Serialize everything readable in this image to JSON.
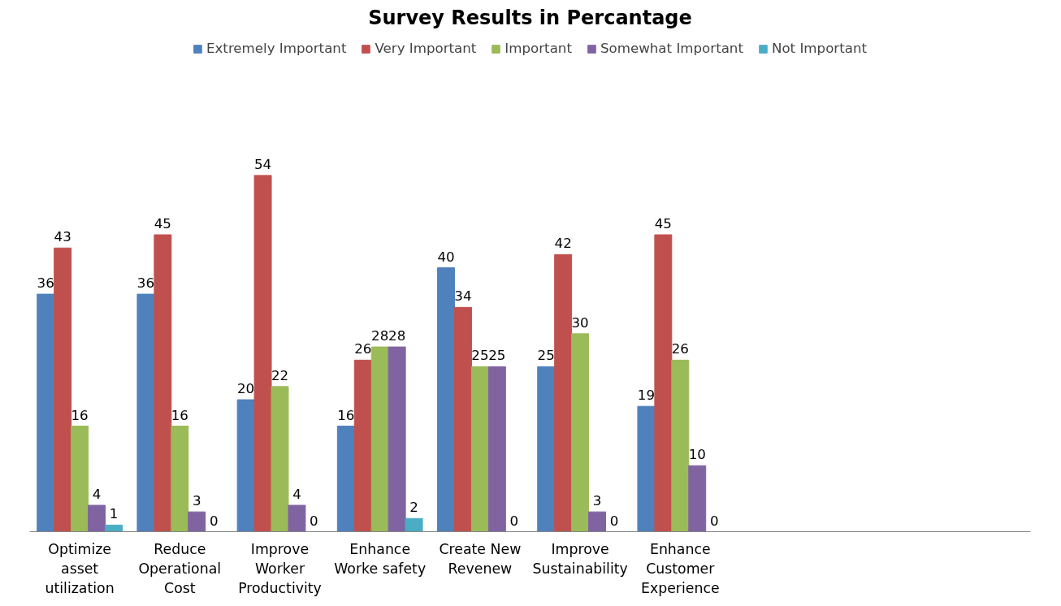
{
  "chart_data": {
    "type": "bar",
    "title": "Survey Results in Percantage",
    "categories": [
      "Optimize asset utilization",
      "Reduce Operational Cost",
      "Improve Worker Productivity",
      "Enhance Worke safety",
      "Create New Revenew",
      "Improve Sustainability",
      "Enhance Customer Experience",
      null,
      null,
      null
    ],
    "series": [
      {
        "name": "Extremely Important",
        "color": "#4f81bd",
        "values": [
          36,
          36,
          20,
          16,
          40,
          25,
          19,
          null,
          null,
          null
        ]
      },
      {
        "name": "Very Important",
        "color": "#c0504d",
        "values": [
          43,
          45,
          54,
          26,
          34,
          42,
          45,
          null,
          null,
          null
        ]
      },
      {
        "name": "Important",
        "color": "#9bbb59",
        "values": [
          16,
          16,
          22,
          28,
          25,
          30,
          26,
          null,
          null,
          null
        ]
      },
      {
        "name": "Somewhat Important",
        "color": "#8064a2",
        "values": [
          4,
          3,
          4,
          28,
          25,
          3,
          10,
          null,
          null,
          null
        ]
      },
      {
        "name": "Not Important",
        "color": "#4bacc6",
        "values": [
          1,
          0,
          0,
          2,
          0,
          0,
          0,
          null,
          null,
          null
        ]
      }
    ],
    "data_labels": true,
    "legend": "top",
    "grid": false,
    "tick_labels": "x"
  }
}
